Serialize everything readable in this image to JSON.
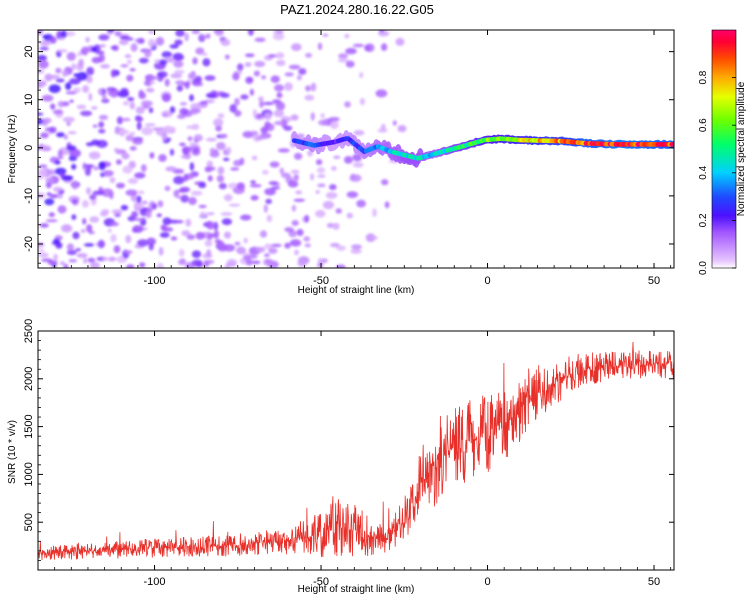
{
  "figure": {
    "title": "PAZ1.2024.280.16.22.G05"
  },
  "colorbar": {
    "label": "Normalized spectral amplitude",
    "ticks": [
      0.0,
      0.2,
      0.4,
      0.6,
      0.8
    ],
    "tick_labels": [
      "0.0",
      "0.2",
      "0.4",
      "0.6",
      "0.8"
    ],
    "range": [
      0,
      1
    ]
  },
  "chart_data": [
    {
      "type": "heatmap",
      "xlabel": "Height of straight line (km)",
      "ylabel": "Frequency (Hz)",
      "xlim": [
        -135,
        56
      ],
      "ylim": [
        -25,
        24.5
      ],
      "xticks": [
        -100,
        -50,
        0,
        50
      ],
      "xtick_labels": [
        "-100",
        "-50",
        "0",
        "50"
      ],
      "yticks": [
        -20,
        -10,
        0,
        10,
        20
      ],
      "ytick_labels": [
        "-20",
        "-10",
        "0",
        "10",
        "20"
      ],
      "colormap": "rainbow (white at 0 to magenta/purple, blue, cyan, green, yellow, red at 1)",
      "ridge": {
        "description": "Strong spectral ridge (frequency peak) versus height; weak scattered noise below about -60 km",
        "x": [
          -58,
          -52,
          -46,
          -42,
          -37,
          -33,
          -29,
          -25,
          -21,
          -17,
          -13,
          -9,
          -5,
          -1,
          4,
          10,
          16,
          22,
          30,
          40,
          50,
          56
        ],
        "y": [
          1.5,
          0.5,
          1.2,
          2.0,
          -0.8,
          0.3,
          -0.8,
          -1.5,
          -2.2,
          -1.5,
          -0.7,
          0.0,
          0.8,
          1.6,
          1.9,
          1.6,
          1.5,
          1.4,
          0.9,
          0.7,
          0.7,
          0.7
        ],
        "amplitude": [
          0.25,
          0.3,
          0.2,
          0.25,
          0.3,
          0.35,
          0.4,
          0.45,
          0.45,
          0.4,
          0.45,
          0.5,
          0.55,
          0.6,
          0.65,
          0.7,
          0.75,
          0.8,
          0.9,
          0.95,
          0.9,
          0.9
        ]
      },
      "noise_region": {
        "x_range": [
          -135,
          -25
        ],
        "amplitude_range": [
          0.0,
          0.15
        ]
      }
    },
    {
      "type": "line",
      "xlabel": "Height of straight line (km)",
      "ylabel": "SNR (10 * v/v)",
      "xlim": [
        -135,
        56
      ],
      "ylim": [
        0,
        2500
      ],
      "xticks": [
        -100,
        -50,
        0,
        50
      ],
      "xtick_labels": [
        "-100",
        "-50",
        "0",
        "50"
      ],
      "yticks": [
        500,
        1000,
        1500,
        2000,
        2500
      ],
      "ytick_labels": [
        "500",
        "1000",
        "1500",
        "2000",
        "2500"
      ],
      "color": "#e8302a",
      "series": [
        {
          "x": [
            -135,
            -120,
            -100,
            -80,
            -60,
            -50,
            -45,
            -40,
            -35,
            -30,
            -25,
            -20,
            -15,
            -10,
            -5,
            0,
            5,
            10,
            15,
            20,
            25,
            30,
            40,
            50,
            56
          ],
          "y": [
            180,
            200,
            230,
            250,
            300,
            380,
            480,
            420,
            350,
            330,
            500,
            900,
            1150,
            1300,
            1350,
            1450,
            1500,
            1700,
            1850,
            1950,
            2050,
            2100,
            2150,
            2150,
            2150
          ],
          "spread": [
            80,
            90,
            100,
            110,
            140,
            250,
            350,
            300,
            200,
            150,
            250,
            400,
            450,
            450,
            450,
            450,
            400,
            350,
            300,
            250,
            200,
            180,
            150,
            150,
            150
          ]
        }
      ]
    }
  ]
}
